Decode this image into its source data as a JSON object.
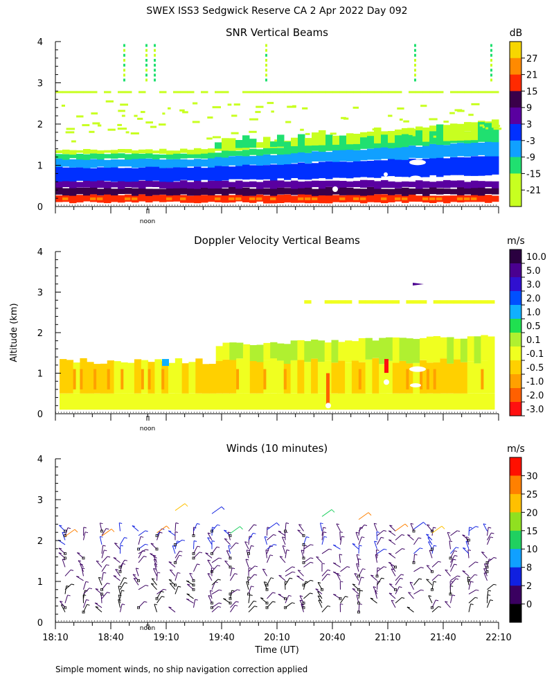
{
  "main_title": "SWEX ISS3 Sedgwick Reserve CA    2 Apr 2022 Day 092",
  "y_axis_label": "Altitude (km)",
  "footer_note": "Simple moment winds, no ship navigation correction applied",
  "noon_label": "noon",
  "chart_data": [
    {
      "type": "heatmap",
      "title": "SNR Vertical Beams",
      "xlabel": "",
      "ylabel": "Altitude (km)",
      "ylim": [
        0,
        4
      ],
      "y_ticks": [
        "0",
        "1",
        "2",
        "3",
        "4"
      ],
      "colorbar": {
        "unit": "dB",
        "labels": [
          "27",
          "21",
          "15",
          "9",
          "3",
          "-3",
          "-9",
          "-15",
          "-21"
        ],
        "colors": [
          "#f7d600",
          "#ff8a00",
          "#ff2a00",
          "#3a004a",
          "#5a00a0",
          "#0030ff",
          "#10a0ff",
          "#20e070",
          "#c8ff20",
          "#c8ff20"
        ]
      },
      "layers": [
        {
          "altitude_km": [
            0.1,
            0.3
          ],
          "snr_db": 21
        },
        {
          "altitude_km": [
            0.3,
            0.6
          ],
          "snr_db": 9
        },
        {
          "altitude_km": [
            0.6,
            1.1
          ],
          "snr_db": -6
        },
        {
          "altitude_km": [
            1.1,
            1.35
          ],
          "snr_db": -15
        },
        {
          "altitude_km": [
            2.75,
            2.8
          ],
          "snr_db": -21
        }
      ]
    },
    {
      "type": "heatmap",
      "title": "Doppler Velocity Vertical Beams",
      "xlabel": "",
      "ylabel": "Altitude (km)",
      "ylim": [
        0,
        4
      ],
      "y_ticks": [
        "0",
        "1",
        "2",
        "3",
        "4"
      ],
      "colorbar": {
        "unit": "m/s",
        "labels": [
          "10.0",
          "5.0",
          "3.0",
          "2.0",
          "1.0",
          "0.5",
          "0.1",
          "-0.1",
          "-0.5",
          "-1.0",
          "-2.0",
          "-3.0"
        ],
        "colors": [
          "#2a0040",
          "#4a0090",
          "#3010d0",
          "#0050ff",
          "#10b0ff",
          "#20e050",
          "#b0f030",
          "#f0ff20",
          "#ffd000",
          "#ffa000",
          "#ff6000",
          "#ff1010"
        ]
      },
      "layers": [
        {
          "altitude_km": [
            0.1,
            0.5
          ],
          "velocity_ms": -0.1
        },
        {
          "altitude_km": [
            0.5,
            1.35
          ],
          "velocity_ms": -0.5
        },
        {
          "altitude_km": [
            1.35,
            1.85
          ],
          "velocity_ms": 0.1
        }
      ]
    },
    {
      "type": "scatter",
      "title": "Winds (10 minutes)",
      "xlabel": "Time (UT)",
      "ylabel": "Altitude (km)",
      "ylim": [
        0,
        4
      ],
      "y_ticks": [
        "0",
        "1",
        "2",
        "3",
        "4"
      ],
      "x_ticks": [
        "18:10",
        "18:40",
        "19:10",
        "19:40",
        "20:10",
        "20:40",
        "21:10",
        "21:40",
        "22:10"
      ],
      "colorbar": {
        "unit": "m/s",
        "labels": [
          "30",
          "25",
          "20",
          "15",
          "10",
          "8",
          "2",
          "0"
        ],
        "colors": [
          "#ff1000",
          "#ff8000",
          "#ffc000",
          "#90e020",
          "#20d060",
          "#10a0ff",
          "#1020e0",
          "#3a0060",
          "#000000"
        ]
      }
    }
  ]
}
